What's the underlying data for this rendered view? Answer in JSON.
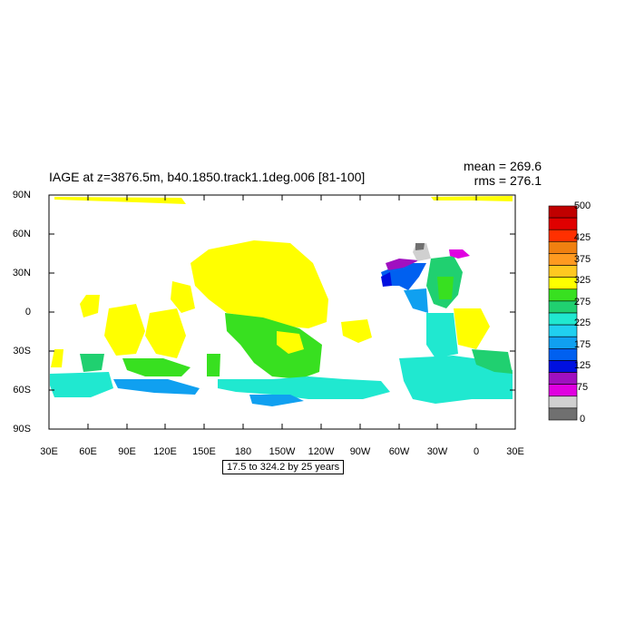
{
  "title": "IAGE at z=3876.5m, b40.1850.track1.1deg.006 [81-100]",
  "stats": {
    "mean": "mean = 269.6",
    "rms": "rms = 276.1"
  },
  "range_label": "17.5 to 324.2 by 25 years",
  "lat_labels": [
    "90N",
    "60N",
    "30N",
    "0",
    "30S",
    "60S",
    "90S"
  ],
  "lon_labels": [
    "30E",
    "60E",
    "90E",
    "120E",
    "150E",
    "180",
    "150W",
    "120W",
    "90W",
    "60W",
    "30W",
    "0",
    "30E"
  ],
  "colorbar": {
    "labels": [
      "500",
      "425",
      "375",
      "325",
      "275",
      "225",
      "175",
      "125",
      "75",
      "0"
    ],
    "colors": [
      "#c00000",
      "#e00000",
      "#ff3000",
      "#f08010",
      "#ff9a20",
      "#ffc820",
      "#ffff00",
      "#38e020",
      "#20d070",
      "#20e8d0",
      "#20d0f0",
      "#10a0f0",
      "#0060f0",
      "#0010e0",
      "#a010c0",
      "#e000e0",
      "#d0d0d0",
      "#707070"
    ]
  }
}
